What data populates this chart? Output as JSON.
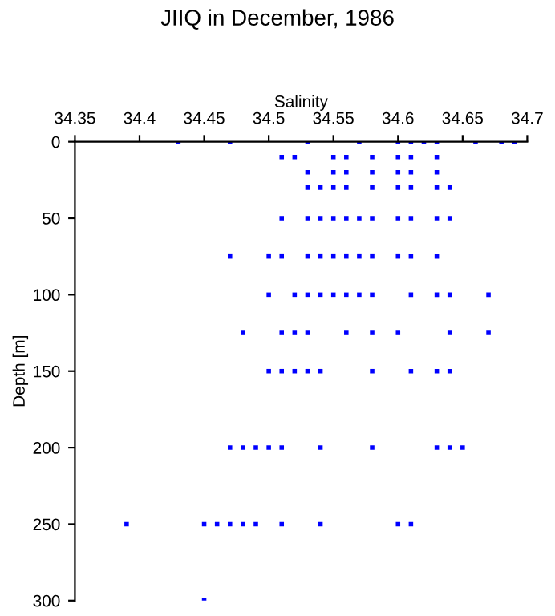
{
  "chart_data": {
    "type": "scatter",
    "title": "JIIQ in December, 1986",
    "xlabel": "Salinity",
    "ylabel": "Depth [m]",
    "marker": "square",
    "grid": false,
    "legend": false,
    "xlim": [
      34.35,
      34.7
    ],
    "xticks": [
      34.35,
      34.4,
      34.45,
      34.5,
      34.55,
      34.6,
      34.65,
      34.7
    ],
    "ylim": [
      300,
      0
    ],
    "yticks": [
      0,
      50,
      100,
      150,
      200,
      250,
      300
    ],
    "series": [
      {
        "color": "#0000ff",
        "x": [
          34.43,
          34.47,
          34.53,
          34.57,
          34.6,
          34.61,
          34.62,
          34.63,
          34.66,
          34.68,
          34.69,
          34.51,
          34.52,
          34.55,
          34.56,
          34.58,
          34.6,
          34.61,
          34.63,
          34.53,
          34.55,
          34.56,
          34.58,
          34.6,
          34.61,
          34.63,
          34.53,
          34.54,
          34.55,
          34.56,
          34.58,
          34.6,
          34.61,
          34.63,
          34.64,
          34.51,
          34.53,
          34.54,
          34.55,
          34.56,
          34.57,
          34.58,
          34.6,
          34.61,
          34.63,
          34.64,
          34.47,
          34.5,
          34.51,
          34.53,
          34.54,
          34.55,
          34.56,
          34.57,
          34.58,
          34.6,
          34.61,
          34.63,
          34.5,
          34.52,
          34.53,
          34.54,
          34.55,
          34.56,
          34.57,
          34.58,
          34.61,
          34.63,
          34.64,
          34.67,
          34.48,
          34.51,
          34.52,
          34.53,
          34.56,
          34.58,
          34.6,
          34.64,
          34.67,
          34.5,
          34.51,
          34.52,
          34.53,
          34.54,
          34.58,
          34.61,
          34.63,
          34.64,
          34.47,
          34.48,
          34.49,
          34.5,
          34.51,
          34.54,
          34.58,
          34.63,
          34.64,
          34.65,
          34.39,
          34.45,
          34.46,
          34.47,
          34.48,
          34.49,
          34.51,
          34.54,
          34.6,
          34.61,
          34.45
        ],
        "values": [
          0,
          0,
          0,
          0,
          0,
          0,
          0,
          0,
          0,
          0,
          0,
          10,
          10,
          10,
          10,
          10,
          10,
          10,
          10,
          20,
          20,
          20,
          20,
          20,
          20,
          20,
          30,
          30,
          30,
          30,
          30,
          30,
          30,
          30,
          30,
          50,
          50,
          50,
          50,
          50,
          50,
          50,
          50,
          50,
          50,
          50,
          75,
          75,
          75,
          75,
          75,
          75,
          75,
          75,
          75,
          75,
          75,
          75,
          100,
          100,
          100,
          100,
          100,
          100,
          100,
          100,
          100,
          100,
          100,
          100,
          125,
          125,
          125,
          125,
          125,
          125,
          125,
          125,
          125,
          150,
          150,
          150,
          150,
          150,
          150,
          150,
          150,
          150,
          200,
          200,
          200,
          200,
          200,
          200,
          200,
          200,
          200,
          200,
          250,
          250,
          250,
          250,
          250,
          250,
          250,
          250,
          250,
          250,
          300
        ]
      }
    ]
  }
}
